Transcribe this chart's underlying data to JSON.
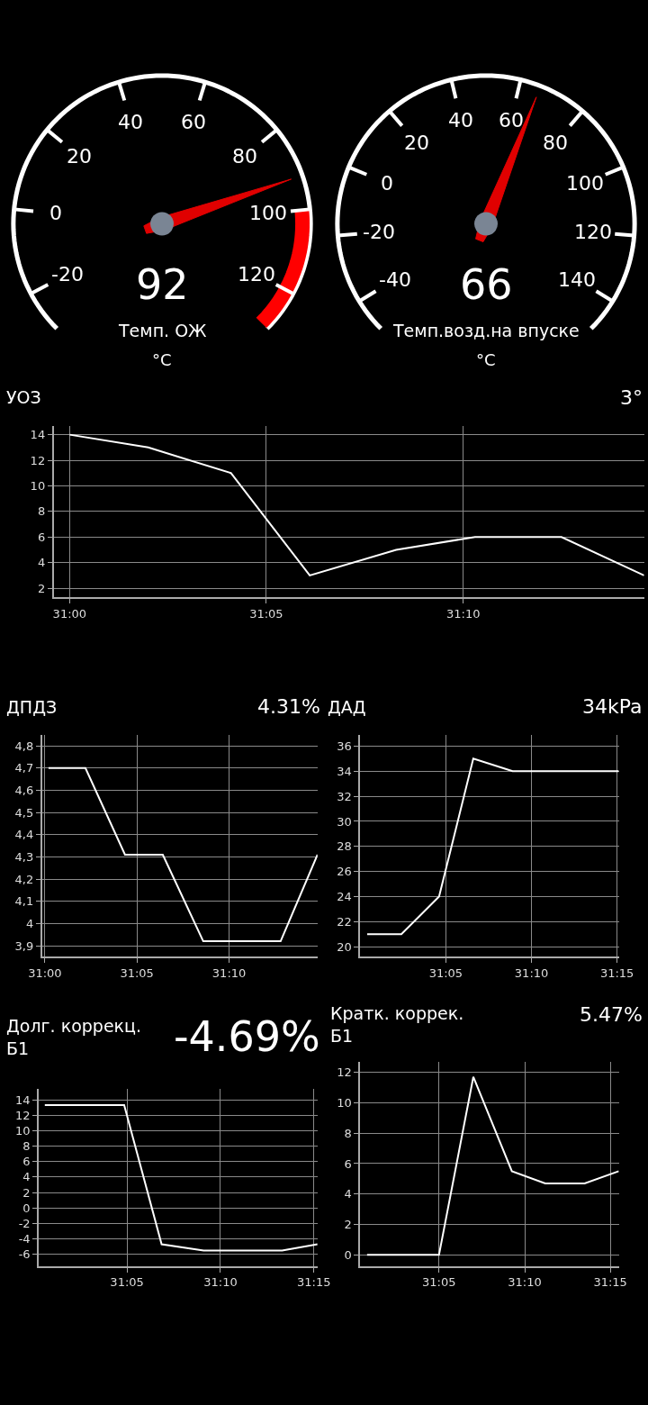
{
  "chart_data": [
    {
      "type": "other",
      "title": "Темп. ОЖ",
      "subtitle": "°C",
      "values": [
        92
      ],
      "data_labels": true,
      "annotations": [
        "-20",
        "0",
        "20",
        "40",
        "60",
        "80",
        "100",
        "120"
      ],
      "color": "#e00000"
    },
    {
      "type": "other",
      "title": "Темп.возд.на впуске",
      "subtitle": "°C",
      "values": [
        66
      ],
      "data_labels": true,
      "annotations": [
        "-40",
        "-20",
        "0",
        "20",
        "40",
        "60",
        "80",
        "100",
        "120",
        "140"
      ],
      "color": "#e00000"
    },
    {
      "type": "line",
      "title": "УОЗ",
      "subtitle": "3°",
      "x": [
        31,
        31.0333,
        31.0683,
        31.1017,
        31.1383,
        31.1717,
        31.2083,
        31.2433
      ],
      "series": [
        {
          "color": "#ffffff",
          "values": [
            14,
            13,
            11,
            3,
            5,
            6,
            6,
            3
          ]
        }
      ],
      "xlim": [
        30.9933,
        31.2433
      ],
      "ylim": [
        1.3,
        14.7
      ],
      "xticks": [
        {
          "value": 31,
          "label": "31:00"
        },
        {
          "value": 31.0833,
          "label": "31:05"
        },
        {
          "value": 31.1667,
          "label": "31:10"
        }
      ],
      "yticks": [
        2,
        4,
        6,
        8,
        10,
        12,
        14
      ],
      "grid": true
    },
    {
      "type": "line",
      "title": "ДПДЗ",
      "subtitle": "4.31%",
      "x": [
        31.0033,
        31.0367,
        31.0725,
        31.1067,
        31.1433,
        31.2133,
        31.2467
      ],
      "series": [
        {
          "color": "#ffffff",
          "values": [
            4.7,
            4.7,
            4.31,
            4.31,
            3.92,
            3.92,
            4.31
          ]
        }
      ],
      "xlim": [
        30.9975,
        31.2467
      ],
      "ylim": [
        3.85,
        4.85
      ],
      "xticks": [
        {
          "value": 31,
          "label": "31:00"
        },
        {
          "value": 31.0833,
          "label": "31:05"
        },
        {
          "value": 31.1667,
          "label": "31:10"
        }
      ],
      "yticks": [
        {
          "value": 3.9,
          "label": "3,9"
        },
        4,
        {
          "value": 4.1,
          "label": "4,1"
        },
        {
          "value": 4.2,
          "label": "4,2"
        },
        {
          "value": 4.3,
          "label": "4,3"
        },
        {
          "value": 4.4,
          "label": "4,4"
        },
        {
          "value": 4.5,
          "label": "4,5"
        },
        {
          "value": 4.6,
          "label": "4,6"
        },
        {
          "value": 4.7,
          "label": "4,7"
        },
        {
          "value": 4.8,
          "label": "4,8"
        }
      ],
      "grid": true
    },
    {
      "type": "line",
      "title": "ДАД",
      "subtitle": "34kPa",
      "x": [
        31.0067,
        31.04,
        31.0767,
        31.11,
        31.1483,
        31.2517
      ],
      "series": [
        {
          "color": "#ffffff",
          "values": [
            21,
            21,
            24,
            35,
            34,
            34
          ]
        }
      ],
      "xlim": [
        31,
        31.2517
      ],
      "ylim": [
        19.2,
        36.9
      ],
      "xticks": [
        {
          "value": 31.0833,
          "label": "31:05"
        },
        {
          "value": 31.1667,
          "label": "31:10"
        },
        {
          "value": 31.25,
          "label": "31:15"
        }
      ],
      "yticks": [
        20,
        22,
        24,
        26,
        28,
        30,
        32,
        34,
        36
      ],
      "grid": true
    },
    {
      "type": "line",
      "title": "Долг. коррекц. Б1",
      "subtitle": "-4.69%",
      "x": [
        31.01,
        31.0808,
        31.1142,
        31.1517,
        31.2217,
        31.2533
      ],
      "series": [
        {
          "color": "#ffffff",
          "values": [
            13.3,
            13.3,
            -4.7,
            -5.5,
            -5.5,
            -4.7
          ]
        }
      ],
      "xlim": [
        31.0047,
        31.2533
      ],
      "ylim": [
        -7.5,
        15.4
      ],
      "xticks": [
        {
          "value": 31.0833,
          "label": "31:05"
        },
        {
          "value": 31.1667,
          "label": "31:10"
        },
        {
          "value": 31.25,
          "label": "31:15"
        }
      ],
      "yticks": [
        -6,
        -4,
        -2,
        0,
        2,
        4,
        6,
        8,
        10,
        12,
        14
      ],
      "grid": true
    },
    {
      "type": "line",
      "title": "Кратк. коррек. Б1",
      "subtitle": "5.47%",
      "x": [
        31.0133,
        31.0833,
        31.1167,
        31.1542,
        31.1867,
        31.225,
        31.2583
      ],
      "series": [
        {
          "color": "#ffffff",
          "values": [
            0,
            0,
            11.7,
            5.5,
            4.7,
            4.7,
            5.5
          ]
        }
      ],
      "xlim": [
        31.0067,
        31.2583
      ],
      "ylim": [
        -0.73,
        12.67
      ],
      "xticks": [
        {
          "value": 31.0833,
          "label": "31:05"
        },
        {
          "value": 31.1667,
          "label": "31:10"
        },
        {
          "value": 31.25,
          "label": "31:15"
        }
      ],
      "yticks": [
        0,
        2,
        4,
        6,
        8,
        10,
        12
      ],
      "grid": true
    }
  ]
}
